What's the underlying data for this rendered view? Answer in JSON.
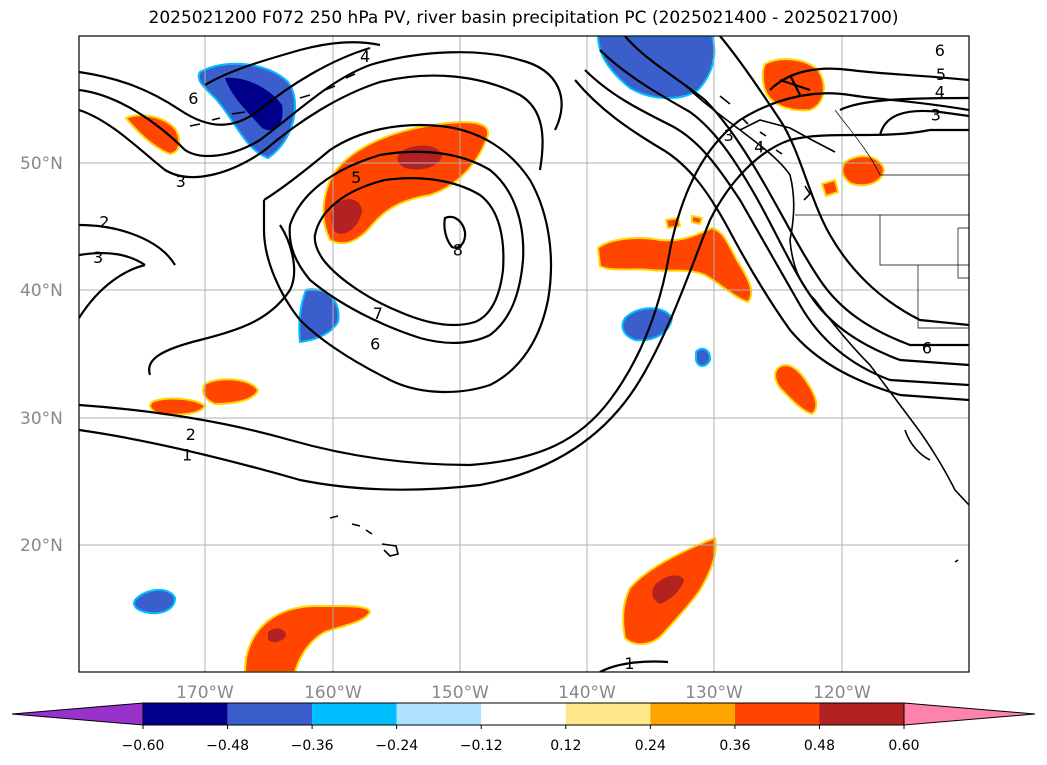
{
  "title": "2025021200 F072 250 hPa PV, river basin precipitation PC (2025021400 - 2025021700)",
  "map": {
    "lat_labels": [
      "50°N",
      "40°N",
      "30°N",
      "20°N"
    ],
    "lon_labels": [
      "170°W",
      "160°W",
      "150°W",
      "140°W",
      "130°W",
      "120°W"
    ],
    "extent": {
      "lon": [
        -180,
        -110
      ],
      "lat": [
        10,
        60
      ]
    },
    "gridlines": true,
    "contour_labels": [
      {
        "text": "6",
        "lon": -171,
        "lat": 55
      },
      {
        "text": "3",
        "lon": -172,
        "lat": 48.5
      },
      {
        "text": "2",
        "lon": -178,
        "lat": 45.3
      },
      {
        "text": "3",
        "lon": -178.5,
        "lat": 42.5
      },
      {
        "text": "4",
        "lon": -157.5,
        "lat": 58.3
      },
      {
        "text": "5",
        "lon": -158.2,
        "lat": 48.8
      },
      {
        "text": "8",
        "lon": -150.2,
        "lat": 43.1
      },
      {
        "text": "7",
        "lon": -156.5,
        "lat": 38.1
      },
      {
        "text": "6",
        "lon": -156.7,
        "lat": 35.7
      },
      {
        "text": "2",
        "lon": -171.2,
        "lat": 28.6
      },
      {
        "text": "1",
        "lon": -171.5,
        "lat": 27.0
      },
      {
        "text": "4",
        "lon": -126.5,
        "lat": 51.2
      },
      {
        "text": "3",
        "lon": -128.9,
        "lat": 52.1
      },
      {
        "text": "6",
        "lon": -112.3,
        "lat": 58.8
      },
      {
        "text": "5",
        "lon": -112.2,
        "lat": 56.9
      },
      {
        "text": "4",
        "lon": -112.3,
        "lat": 55.5
      },
      {
        "text": "3",
        "lon": -112.6,
        "lat": 53.7
      },
      {
        "text": "6",
        "lon": -113.3,
        "lat": 35.4
      },
      {
        "text": "1",
        "lon": -136.7,
        "lat": 10.6
      }
    ]
  },
  "colorbar": {
    "ticks": [
      "−0.60",
      "−0.48",
      "−0.36",
      "−0.24",
      "−0.12",
      "0.12",
      "0.24",
      "0.36",
      "0.48",
      "0.60"
    ],
    "colors": [
      "#9932cc",
      "#00008b",
      "#3a5fcd",
      "#00bfff",
      "#b0e2ff",
      "#ffffff",
      "#ffe88c",
      "#ffa500",
      "#ff4500",
      "#b22222",
      "#ff82ab"
    ]
  }
}
